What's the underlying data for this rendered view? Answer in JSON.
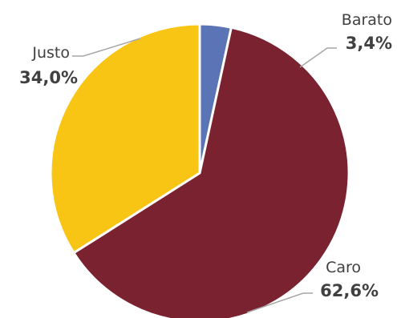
{
  "chart_data": {
    "type": "pie",
    "slices": [
      {
        "label": "Barato",
        "value": 3.4,
        "value_label": "3,4%",
        "color": "#5a74b6"
      },
      {
        "label": "Caro",
        "value": 62.6,
        "value_label": "62,6%",
        "color": "#7b2230"
      },
      {
        "label": "Justo",
        "value": 34.0,
        "value_label": "34,0%",
        "color": "#f9c515"
      }
    ],
    "slice_order": "clockwise from top",
    "legend": "none",
    "title": ""
  }
}
